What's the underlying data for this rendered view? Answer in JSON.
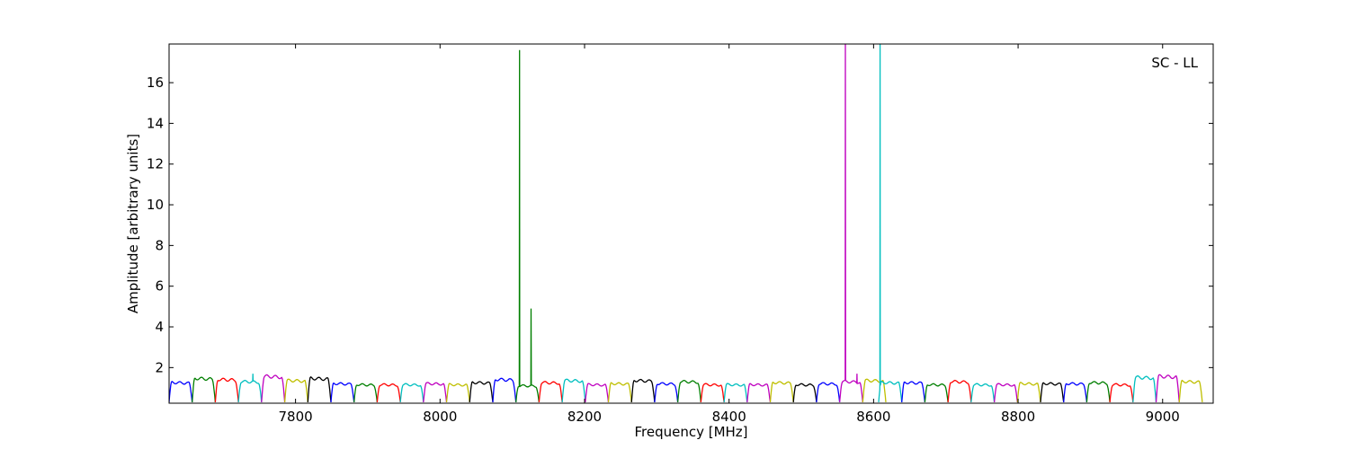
{
  "chart_data": {
    "type": "line",
    "xlabel": "Frequency [MHz]",
    "ylabel": "Amplitude [arbitrary units]",
    "annotation": "SC - LL",
    "annotation_position": "top-right",
    "xlim": [
      7625,
      9070
    ],
    "ylim": [
      0.25,
      17.9
    ],
    "x_ticks": [
      7800,
      8000,
      8200,
      8400,
      8600,
      8800,
      9000
    ],
    "y_ticks": [
      2,
      4,
      6,
      8,
      10,
      12,
      14,
      16
    ],
    "grid": false,
    "legend": "none",
    "channel_width_mhz": 32,
    "series": [
      {
        "start": 7625,
        "color": "#0000ff",
        "peak": 1.25
      },
      {
        "start": 7657,
        "color": "#007f00",
        "peak": 1.45
      },
      {
        "start": 7689,
        "color": "#ff0000",
        "peak": 1.4
      },
      {
        "start": 7721,
        "color": "#00bfbf",
        "peak": 1.3,
        "spikes": [
          {
            "x": 7741,
            "y": 1.7
          }
        ]
      },
      {
        "start": 7753,
        "color": "#bf00bf",
        "peak": 1.55
      },
      {
        "start": 7785,
        "color": "#bfbf00",
        "peak": 1.35
      },
      {
        "start": 7817,
        "color": "#000000",
        "peak": 1.45
      },
      {
        "start": 7849,
        "color": "#0000ff",
        "peak": 1.2
      },
      {
        "start": 7881,
        "color": "#007f00",
        "peak": 1.15
      },
      {
        "start": 7913,
        "color": "#ff0000",
        "peak": 1.15
      },
      {
        "start": 7945,
        "color": "#00bfbf",
        "peak": 1.15
      },
      {
        "start": 7977,
        "color": "#bf00bf",
        "peak": 1.2
      },
      {
        "start": 8009,
        "color": "#bfbf00",
        "peak": 1.15
      },
      {
        "start": 8041,
        "color": "#000000",
        "peak": 1.25
      },
      {
        "start": 8073,
        "color": "#0000ff",
        "peak": 1.4
      },
      {
        "start": 8105,
        "color": "#007f00",
        "peak": 1.1,
        "spikes": [
          {
            "x": 8110,
            "y": 17.6
          },
          {
            "x": 8126,
            "y": 4.9
          }
        ]
      },
      {
        "start": 8137,
        "color": "#ff0000",
        "peak": 1.25
      },
      {
        "start": 8169,
        "color": "#00bfbf",
        "peak": 1.35
      },
      {
        "start": 8201,
        "color": "#bf00bf",
        "peak": 1.15
      },
      {
        "start": 8233,
        "color": "#bfbf00",
        "peak": 1.2
      },
      {
        "start": 8265,
        "color": "#000000",
        "peak": 1.35
      },
      {
        "start": 8297,
        "color": "#0000ff",
        "peak": 1.2
      },
      {
        "start": 8329,
        "color": "#007f00",
        "peak": 1.3
      },
      {
        "start": 8361,
        "color": "#ff0000",
        "peak": 1.15
      },
      {
        "start": 8393,
        "color": "#00bfbf",
        "peak": 1.15
      },
      {
        "start": 8425,
        "color": "#bf00bf",
        "peak": 1.15
      },
      {
        "start": 8457,
        "color": "#bfbf00",
        "peak": 1.25
      },
      {
        "start": 8489,
        "color": "#000000",
        "peak": 1.15
      },
      {
        "start": 8521,
        "color": "#0000ff",
        "peak": 1.2
      },
      {
        "start": 8553,
        "color": "#bf00bf",
        "peak": 1.3,
        "spikes": [
          {
            "x": 8561,
            "y": 17.9
          },
          {
            "x": 8577,
            "y": 1.7
          }
        ]
      },
      {
        "start": 8585,
        "color": "#bfbf00",
        "peak": 1.35
      },
      {
        "start": 8607,
        "color": "#00bfbf",
        "peak": 1.25,
        "spikes": [
          {
            "x": 8609,
            "y": 17.9
          }
        ]
      },
      {
        "start": 8639,
        "color": "#0000ff",
        "peak": 1.25
      },
      {
        "start": 8671,
        "color": "#007f00",
        "peak": 1.15
      },
      {
        "start": 8703,
        "color": "#ff0000",
        "peak": 1.3
      },
      {
        "start": 8735,
        "color": "#00bfbf",
        "peak": 1.15
      },
      {
        "start": 8767,
        "color": "#bf00bf",
        "peak": 1.15
      },
      {
        "start": 8799,
        "color": "#bfbf00",
        "peak": 1.2
      },
      {
        "start": 8831,
        "color": "#000000",
        "peak": 1.2
      },
      {
        "start": 8863,
        "color": "#0000ff",
        "peak": 1.2
      },
      {
        "start": 8895,
        "color": "#007f00",
        "peak": 1.25
      },
      {
        "start": 8927,
        "color": "#ff0000",
        "peak": 1.15
      },
      {
        "start": 8959,
        "color": "#00bfbf",
        "peak": 1.5
      },
      {
        "start": 8991,
        "color": "#bf00bf",
        "peak": 1.55
      },
      {
        "start": 9023,
        "color": "#bfbf00",
        "peak": 1.3
      }
    ]
  }
}
